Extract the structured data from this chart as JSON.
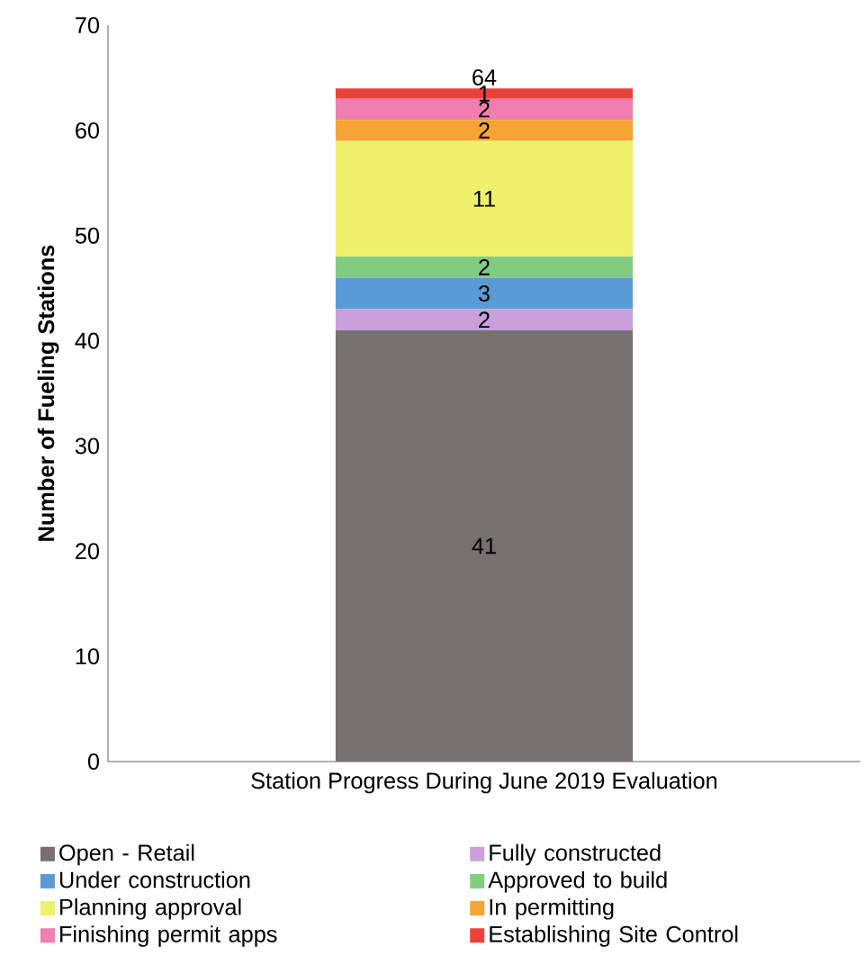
{
  "chart_data": {
    "type": "bar",
    "stacked": true,
    "categories": [
      "Station Progress During June 2019 Evaluation"
    ],
    "ylabel": "Number of Fueling Stations",
    "ylim": [
      0,
      70
    ],
    "yticks": [
      0,
      10,
      20,
      30,
      40,
      50,
      60,
      70
    ],
    "data_labels": true,
    "totals": [
      "64"
    ],
    "legend": "bottom",
    "series": [
      {
        "name": "Open - Retail",
        "color": "#767171",
        "values": [
          41
        ]
      },
      {
        "name": "Fully constructed",
        "color": "#c9a0dc",
        "values": [
          2
        ]
      },
      {
        "name": "Under construction",
        "color": "#5b9bd5",
        "values": [
          3
        ]
      },
      {
        "name": "Approved to build",
        "color": "#82cc82",
        "values": [
          2
        ]
      },
      {
        "name": "Planning approval",
        "color": "#eff06c",
        "values": [
          11
        ]
      },
      {
        "name": "In permitting",
        "color": "#f7a335",
        "values": [
          2
        ]
      },
      {
        "name": "Finishing permit apps",
        "color": "#f07eb0",
        "values": [
          2
        ]
      },
      {
        "name": "Establishing Site Control",
        "color": "#e8433a",
        "values": [
          1
        ]
      }
    ]
  }
}
